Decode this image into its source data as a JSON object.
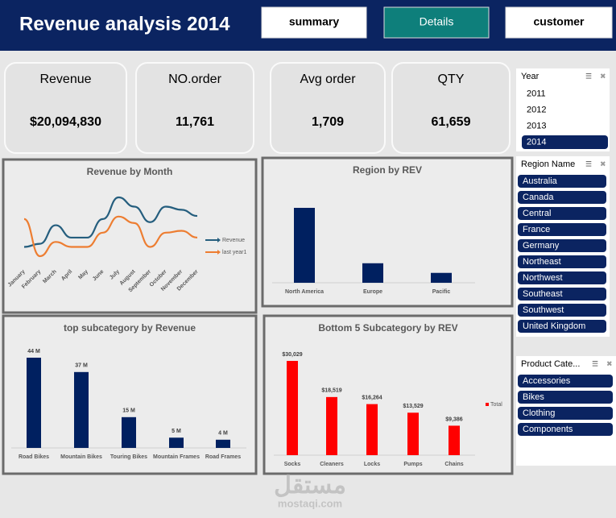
{
  "header": {
    "title": "Revenue analysis 2014",
    "buttons": [
      "summary",
      "Details",
      "customer"
    ],
    "active_button": [
      false,
      true,
      false
    ]
  },
  "kpis": [
    {
      "label": "Revenue",
      "value": "$20,094,830"
    },
    {
      "label": "NO.order",
      "value": "11,761"
    },
    {
      "label": "Avg order",
      "value": "1,709"
    },
    {
      "label": "QTY",
      "value": "61,659"
    }
  ],
  "chart_data": [
    {
      "type": "line",
      "title": "Revenue by Month",
      "categories": [
        "January",
        "February",
        "March",
        "April",
        "May",
        "June",
        "July",
        "August",
        "September",
        "October",
        "November",
        "December"
      ],
      "series": [
        {
          "name": "Revenue",
          "color": "#255e7e",
          "values": [
            0.9,
            1.0,
            1.6,
            1.2,
            1.2,
            1.8,
            2.5,
            2.2,
            1.7,
            2.2,
            2.1,
            1.9
          ]
        },
        {
          "name": "last year1",
          "color": "#ed7d31",
          "values": [
            1.8,
            0.6,
            1.06,
            0.9,
            0.9,
            1.36,
            1.88,
            1.67,
            0.9,
            1.36,
            1.42,
            1.2
          ]
        }
      ],
      "legend": "right"
    },
    {
      "type": "bar",
      "title": "Region by REV",
      "categories": [
        "North America",
        "Europe",
        "Pacific"
      ],
      "values": [
        14.4,
        3.75,
        1.9
      ],
      "color": "#002060"
    },
    {
      "type": "bar",
      "title": "top subcategory  by Revenue",
      "categories": [
        "Road Bikes",
        "Mountain Bikes",
        "Touring Bikes",
        "Mountain Frames",
        "Road Frames"
      ],
      "values": [
        44,
        37,
        15,
        5,
        4
      ],
      "value_labels": [
        "44 M",
        "37 M",
        "15 M",
        "5 M",
        "4 M"
      ],
      "color": "#002060"
    },
    {
      "type": "bar",
      "title": "Bottom 5 Subcategory by REV",
      "categories": [
        "Socks",
        "Cleaners",
        "Locks",
        "Pumps",
        "Chains"
      ],
      "series": [
        {
          "name": "Total",
          "color": "#ff0000",
          "values": [
            30029,
            18519,
            16264,
            13529,
            9386
          ],
          "value_labels": [
            "$30,029",
            "$18,519",
            "$16,264",
            "$13,529",
            "$9,386"
          ]
        }
      ],
      "legend": "right"
    }
  ],
  "slicers": [
    {
      "title": "Year",
      "items": [
        "2011",
        "2012",
        "2013",
        "2014"
      ],
      "selected": [
        false,
        false,
        false,
        true
      ]
    },
    {
      "title": "Region Name",
      "items": [
        "Australia",
        "Canada",
        "Central",
        "France",
        "Germany",
        "Northeast",
        "Northwest",
        "Southeast",
        "Southwest",
        "United Kingdom"
      ],
      "selected": [
        true,
        true,
        true,
        true,
        true,
        true,
        true,
        true,
        true,
        true
      ]
    },
    {
      "title": "Product Cate...",
      "items": [
        "Accessories",
        "Bikes",
        "Clothing",
        "Components"
      ],
      "selected": [
        true,
        true,
        true,
        true
      ]
    }
  ],
  "watermark": [
    "مستقل",
    "mostaqi.com"
  ]
}
